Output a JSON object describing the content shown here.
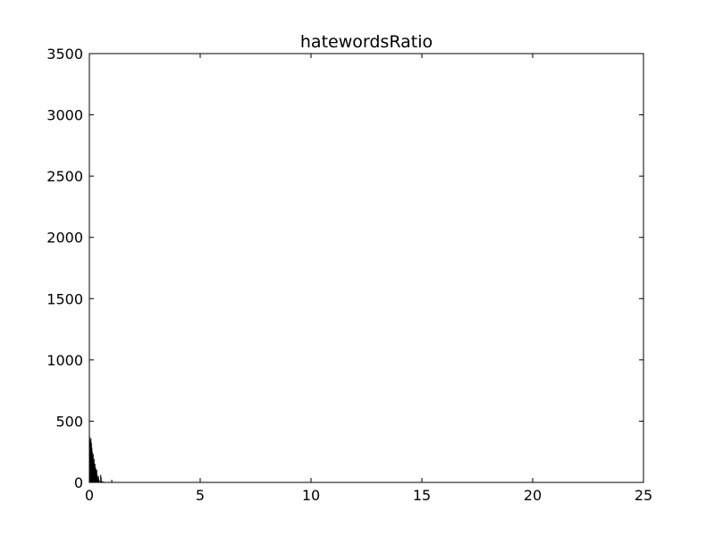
{
  "chart_data": {
    "type": "bar",
    "title": "hatewordsRatio",
    "xlabel": "",
    "ylabel": "",
    "xlim": [
      0,
      25
    ],
    "ylim": [
      0,
      3500
    ],
    "grid": false,
    "legend": "none",
    "xticks": [
      0,
      5,
      10,
      15,
      20,
      25
    ],
    "yticks": [
      0,
      500,
      1000,
      1500,
      2000,
      2500,
      3000,
      3500
    ],
    "bar_color": "#000000",
    "bins": [
      {
        "x": 0.0,
        "width": 0.02,
        "value": 370
      },
      {
        "x": 0.02,
        "width": 0.02,
        "value": 340
      },
      {
        "x": 0.04,
        "width": 0.02,
        "value": 310
      },
      {
        "x": 0.06,
        "width": 0.02,
        "value": 360
      },
      {
        "x": 0.08,
        "width": 0.02,
        "value": 320
      },
      {
        "x": 0.1,
        "width": 0.02,
        "value": 280
      },
      {
        "x": 0.12,
        "width": 0.02,
        "value": 250
      },
      {
        "x": 0.14,
        "width": 0.02,
        "value": 200
      },
      {
        "x": 0.16,
        "width": 0.02,
        "value": 230
      },
      {
        "x": 0.18,
        "width": 0.02,
        "value": 170
      },
      {
        "x": 0.2,
        "width": 0.02,
        "value": 190
      },
      {
        "x": 0.22,
        "width": 0.02,
        "value": 140
      },
      {
        "x": 0.24,
        "width": 0.02,
        "value": 150
      },
      {
        "x": 0.26,
        "width": 0.02,
        "value": 120
      },
      {
        "x": 0.28,
        "width": 0.02,
        "value": 110
      },
      {
        "x": 0.3,
        "width": 0.02,
        "value": 90
      },
      {
        "x": 0.32,
        "width": 0.02,
        "value": 100
      },
      {
        "x": 0.34,
        "width": 0.02,
        "value": 60
      },
      {
        "x": 0.36,
        "width": 0.02,
        "value": 40
      },
      {
        "x": 0.38,
        "width": 0.02,
        "value": 30
      },
      {
        "x": 0.4,
        "width": 0.02,
        "value": 50
      },
      {
        "x": 0.42,
        "width": 0.02,
        "value": 20
      },
      {
        "x": 0.44,
        "width": 0.02,
        "value": 10
      },
      {
        "x": 0.5,
        "width": 0.02,
        "value": 60
      },
      {
        "x": 0.52,
        "width": 0.02,
        "value": 40
      },
      {
        "x": 0.56,
        "width": 0.02,
        "value": 10
      },
      {
        "x": 0.62,
        "width": 0.02,
        "value": 5
      },
      {
        "x": 0.7,
        "width": 0.02,
        "value": 3
      },
      {
        "x": 1.0,
        "width": 0.02,
        "value": 20
      },
      {
        "x": 24.38,
        "width": 0.02,
        "value": 2
      }
    ]
  }
}
